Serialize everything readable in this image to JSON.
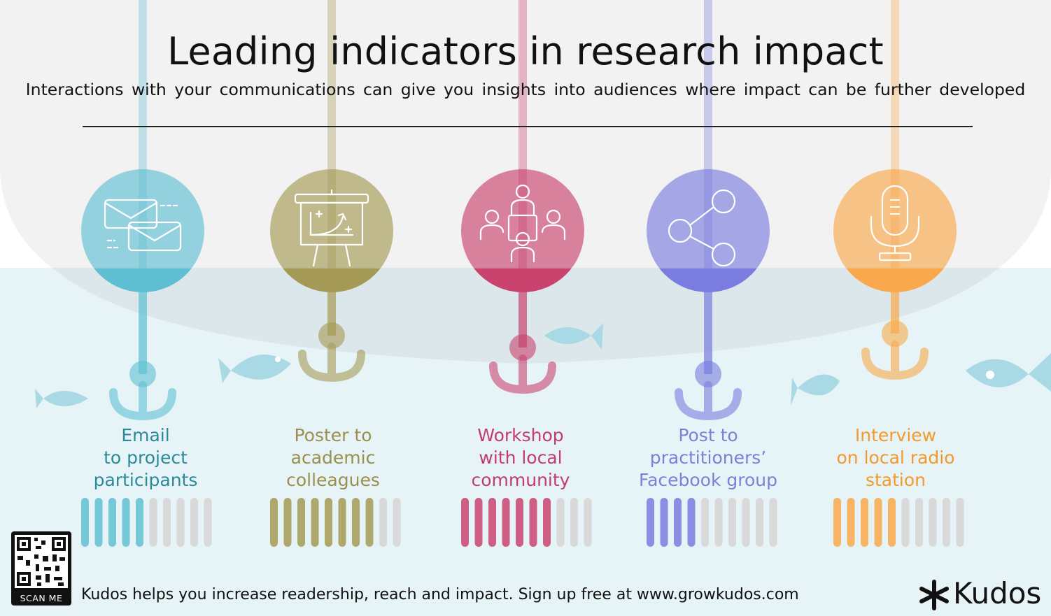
{
  "title": "Leading indicators in research impact",
  "subtitle": "Interactions with your communications can give you insights into audiences where impact can be further developed",
  "channels": [
    {
      "icon": "email-icon",
      "label_lines": [
        "Email",
        "to project",
        "participants"
      ],
      "color": "#5fbfd2",
      "text_color": "#2b8a99",
      "level_filled": 5,
      "level_total": 10
    },
    {
      "icon": "presentation-board-icon",
      "label_lines": [
        "Poster to",
        "academic",
        "colleagues"
      ],
      "color": "#a59a55",
      "text_color": "#9a8f4c",
      "level_filled": 8,
      "level_total": 10
    },
    {
      "icon": "group-meeting-icon",
      "label_lines": [
        "Workshop",
        "with local",
        "community"
      ],
      "color": "#c9436e",
      "text_color": "#c33c6a",
      "level_filled": 7,
      "level_total": 10
    },
    {
      "icon": "share-icon",
      "label_lines": [
        "Post to",
        "practitioners’",
        "Facebook group"
      ],
      "color": "#7a7ddf",
      "text_color": "#7c80d9",
      "level_filled": 4,
      "level_total": 10
    },
    {
      "icon": "microphone-icon",
      "label_lines": [
        "Interview",
        "on local radio",
        "station"
      ],
      "color": "#f9a84b",
      "text_color": "#f39a2a",
      "level_filled": 5,
      "level_total": 10
    }
  ],
  "footer": {
    "qr_label": "SCAN ME",
    "tagline": "Kudos helps you increase readership, reach and impact. Sign up free at www.growkudos.com",
    "brand": "Kudos"
  }
}
